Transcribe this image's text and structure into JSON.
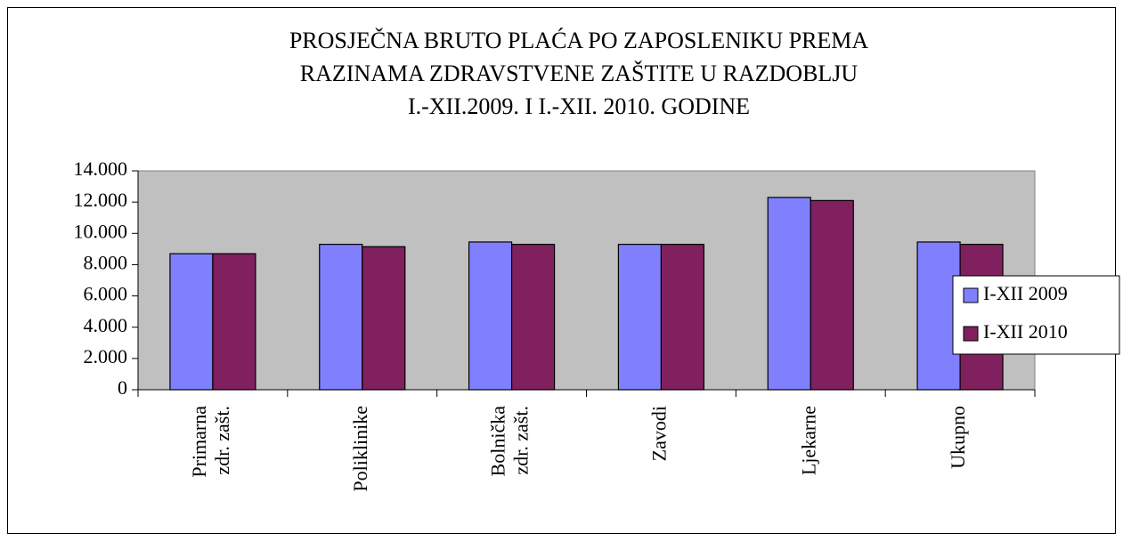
{
  "chart_data": {
    "type": "bar",
    "title": [
      "PROSJEČNA BRUTO PLAĆA PO ZAPOSLENIKU PREMA",
      "RAZINAMA ZDRAVSTVENE ZAŠTITE U RAZDOBLJU",
      "I.-XII.2009. I  I.-XII. 2010. GODINE"
    ],
    "categories": [
      [
        "Primarna",
        "zdr. zašt."
      ],
      [
        "Poliklinike"
      ],
      [
        "Bolnička",
        "zdr. zašt."
      ],
      [
        "Zavodi"
      ],
      [
        "Ljekarne"
      ],
      [
        "Ukupno"
      ]
    ],
    "series": [
      {
        "name": "I-XII 2009",
        "color": "#8080ff",
        "values": [
          8700,
          9300,
          9450,
          9300,
          12300,
          9450
        ]
      },
      {
        "name": "I-XII 2010",
        "color": "#80205f",
        "values": [
          8700,
          9150,
          9300,
          9300,
          12100,
          9300
        ]
      }
    ],
    "ylim": [
      0,
      14000
    ],
    "yticks": [
      0,
      {
        "value": 2000,
        "label": "2.000"
      },
      {
        "value": 4000,
        "label": "4.000"
      },
      {
        "value": 6000,
        "label": "6.000"
      },
      {
        "value": 8000,
        "label": "8.000"
      },
      {
        "value": 10000,
        "label": "10.000"
      },
      {
        "value": 12000,
        "label": "12.000"
      },
      {
        "value": 14000,
        "label": "14.000"
      }
    ],
    "legend": "right",
    "plot_background": "#c0c0c0"
  }
}
